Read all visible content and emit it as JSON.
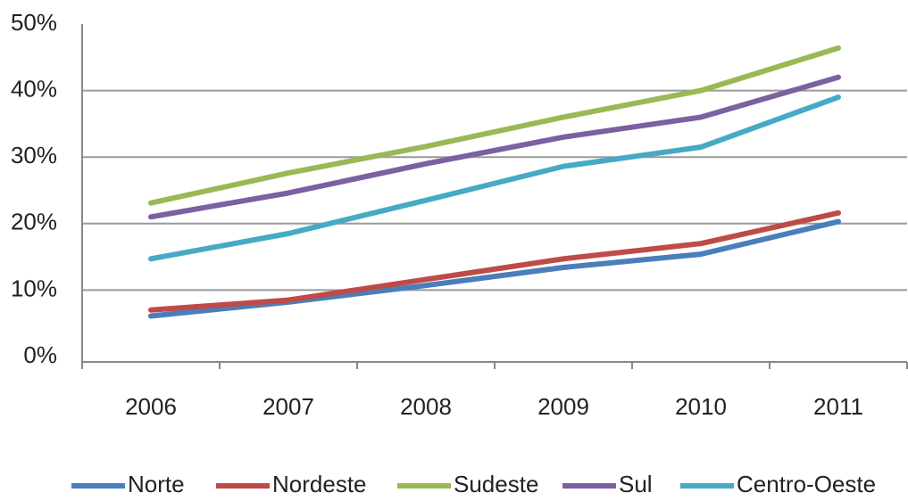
{
  "chart_data": {
    "type": "line",
    "categories": [
      "2006",
      "2007",
      "2008",
      "2009",
      "2010",
      "2011"
    ],
    "series": [
      {
        "name": "Norte",
        "color": "#4a7ebb",
        "values": [
          6.1,
          8.2,
          10.7,
          13.4,
          15.4,
          20.3
        ]
      },
      {
        "name": "Nordeste",
        "color": "#be4b48",
        "values": [
          7,
          8.5,
          11.6,
          14.7,
          17,
          21.6
        ]
      },
      {
        "name": "Sudeste",
        "color": "#98b954",
        "values": [
          23.1,
          27.6,
          31.6,
          36,
          40,
          46.4
        ]
      },
      {
        "name": "Sul",
        "color": "#7d60a0",
        "values": [
          21,
          24.6,
          29,
          33,
          36,
          42
        ]
      },
      {
        "name": "Centro-Oeste",
        "color": "#46aac5",
        "values": [
          14.7,
          18.5,
          23.5,
          28.6,
          31.5,
          39
        ]
      }
    ],
    "ylim": [
      0,
      50
    ],
    "yticks": [
      {
        "value": 0,
        "label": "0%"
      },
      {
        "value": 10,
        "label": "10%"
      },
      {
        "value": 20,
        "label": "20%"
      },
      {
        "value": 30,
        "label": "30%"
      },
      {
        "value": 40,
        "label": "40%"
      },
      {
        "value": 50,
        "label": "50%"
      }
    ],
    "grid": true,
    "legend": "bottom"
  }
}
